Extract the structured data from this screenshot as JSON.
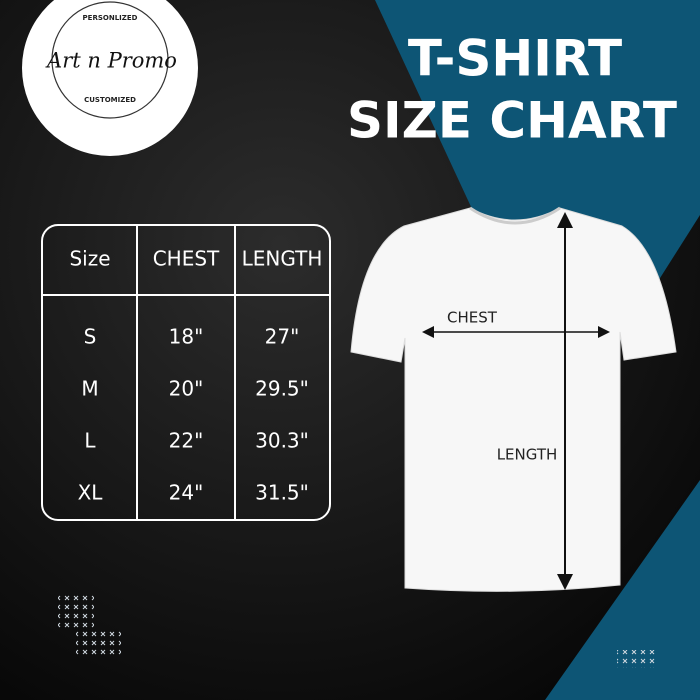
{
  "logo": {
    "top": "PERSONLIZED",
    "name": "Art n Promo",
    "bottom": "CUSTOMIZED"
  },
  "title": {
    "line1": "T-SHIRT",
    "line2": "SIZE CHART"
  },
  "table": {
    "header": [
      "Size",
      "CHEST",
      "LENGTH"
    ],
    "rows": [
      [
        "S",
        "18\"",
        "27\""
      ],
      [
        "M",
        "20\"",
        "29.5\""
      ],
      [
        "L",
        "22\"",
        "30.3\""
      ],
      [
        "XL",
        "24\"",
        "31.5\""
      ]
    ]
  },
  "shirt": {
    "chest_label": "CHEST",
    "length_label": "LENGTH"
  }
}
